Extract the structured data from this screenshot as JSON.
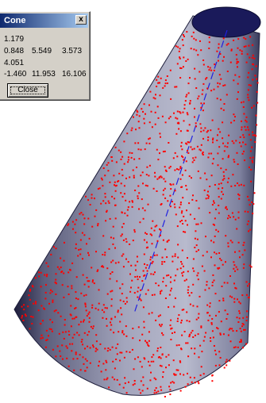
{
  "dialog": {
    "title": "Cone",
    "close_glyph": "x",
    "rows": [
      [
        "1.179"
      ],
      [
        "0.848",
        "5.549",
        "3.573"
      ],
      [
        "4.051"
      ],
      [
        "-1.460",
        "11.953",
        "16.106"
      ]
    ],
    "close_button_label": "Close"
  },
  "scene": {
    "object": "cone",
    "cone_fill": "#9a9db4",
    "cone_edge": "#1e1e3c",
    "top_cap_color": "#1a1a5a",
    "axis_color": "#2020e0",
    "point_color": "#ff0000",
    "axis_style": "dashed",
    "point_count": 1400
  }
}
